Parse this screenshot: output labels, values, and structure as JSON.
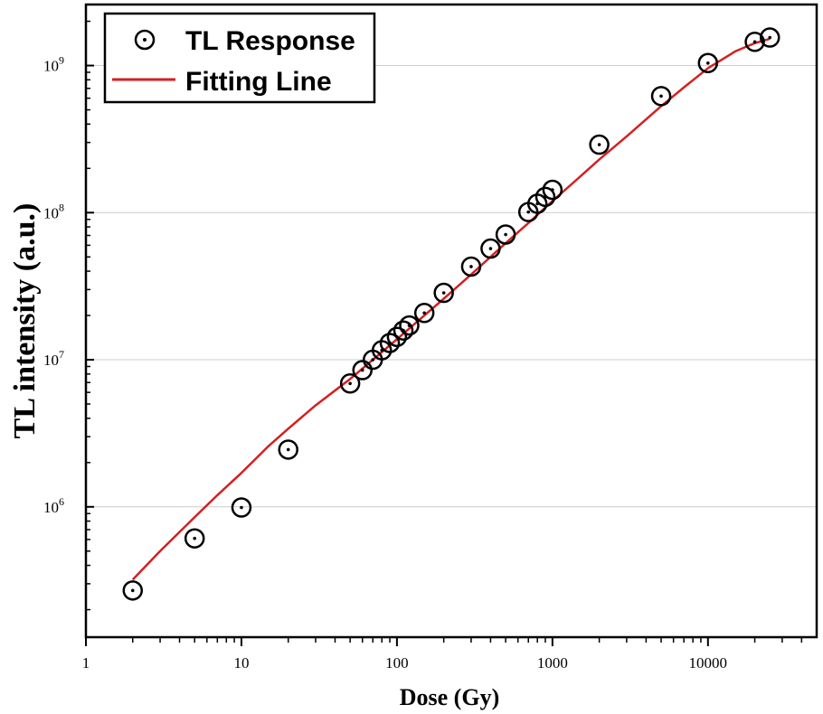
{
  "chart_data": {
    "type": "scatter",
    "xlabel": "Dose (Gy)",
    "ylabel": "TL intensity (a.u.)",
    "x_scale": "log",
    "y_scale": "log",
    "xlim": [
      1,
      50000
    ],
    "ylim": [
      130000,
      2600000000
    ],
    "x_ticks": [
      1,
      10,
      100,
      1000,
      10000
    ],
    "x_tick_labels": [
      "1",
      "10",
      "100",
      "1000",
      "10000"
    ],
    "y_ticks": [
      1000000,
      10000000,
      100000000,
      1000000000
    ],
    "y_tick_labels": [
      {
        "base": "10",
        "exp": "6"
      },
      {
        "base": "10",
        "exp": "7"
      },
      {
        "base": "10",
        "exp": "8"
      },
      {
        "base": "10",
        "exp": "9"
      }
    ],
    "grid": "horizontal",
    "legend": {
      "placement": "top-left",
      "entries": [
        "TL Response",
        "Fitting Line"
      ]
    },
    "series": [
      {
        "name": "TL Response",
        "kind": "scatter",
        "marker": "circle-dot",
        "color": "#000000",
        "x": [
          2,
          5,
          10,
          20,
          50,
          60,
          70,
          80,
          90,
          100,
          110,
          120,
          150,
          200,
          300,
          400,
          500,
          700,
          800,
          900,
          1000,
          2000,
          5000,
          10000,
          20000,
          25000
        ],
        "y": [
          270000,
          610000,
          990000,
          2450000,
          6900000,
          8500000,
          10000000,
          11600000,
          13000000,
          14300000,
          15800000,
          17100000,
          20800000,
          28500000,
          43000000,
          57000000,
          71000000,
          101000000,
          115000000,
          128000000,
          143000000,
          290000000,
          620000000,
          1040000000,
          1450000000,
          1550000000
        ]
      },
      {
        "name": "Fitting Line",
        "kind": "line",
        "color": "#d42020",
        "x": [
          2,
          3,
          5,
          7,
          10,
          15,
          20,
          30,
          50,
          70,
          100,
          150,
          200,
          300,
          500,
          700,
          1000,
          1500,
          2000,
          3000,
          5000,
          7000,
          10000,
          15000,
          20000,
          25000
        ],
        "y": [
          320000,
          500000,
          850000,
          1200000,
          1700000,
          2600000,
          3400000,
          4900000,
          7400000,
          10000000,
          13800000,
          20000000,
          26000000,
          38000000,
          62000000,
          85000000,
          120000000,
          175000000,
          230000000,
          330000000,
          530000000,
          710000000,
          960000000,
          1250000000,
          1420000000,
          1520000000
        ]
      }
    ],
    "colors": {
      "grid": "#cccccc",
      "axis": "#000000",
      "fit": "#d42020"
    }
  }
}
